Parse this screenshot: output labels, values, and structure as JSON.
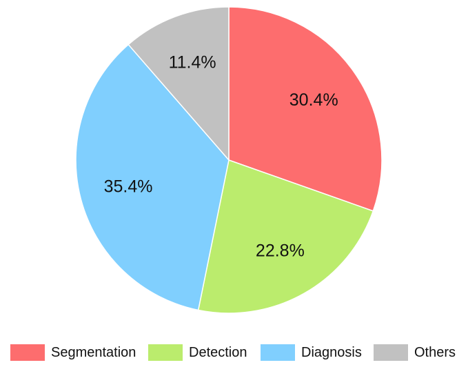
{
  "chart_data": {
    "type": "pie",
    "start_angle": "12 o'clock",
    "direction": "clockwise",
    "legend_position": "bottom",
    "slices": [
      {
        "label": "Segmentation",
        "value": 30.4,
        "display": "30.4%",
        "color": "#fd6d6e"
      },
      {
        "label": "Detection",
        "value": 22.8,
        "display": "22.8%",
        "color": "#bbec6d"
      },
      {
        "label": "Diagnosis",
        "value": 35.4,
        "display": "35.4%",
        "color": "#80cffe"
      },
      {
        "label": "Others",
        "value": 11.4,
        "display": "11.4%",
        "color": "#c1c1c1"
      }
    ]
  }
}
